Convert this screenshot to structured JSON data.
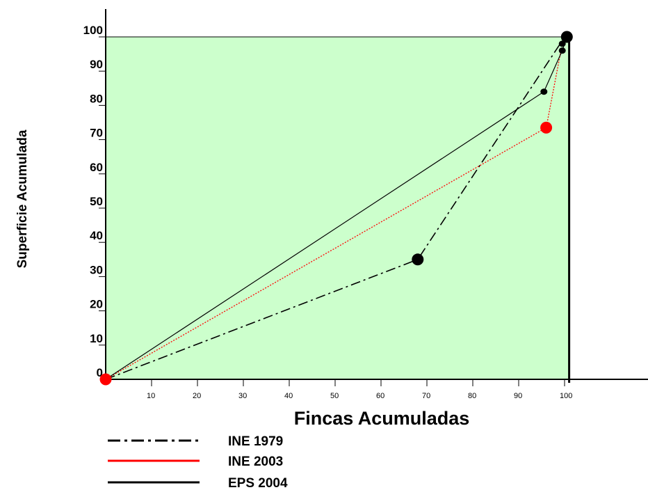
{
  "chart_data": {
    "type": "line",
    "xlabel": "Fincas Acumuladas",
    "ylabel": "Superficie Acumulada",
    "xlim": [
      0,
      102
    ],
    "ylim": [
      0,
      100
    ],
    "x_ticks": [
      "10",
      "20",
      "30",
      "40",
      "50",
      "60",
      "70",
      "80",
      "90",
      "100"
    ],
    "y_ticks": [
      "0",
      "10",
      "20",
      "30",
      "40",
      "50",
      "60",
      "70",
      "80",
      "90",
      "100"
    ],
    "grid": false,
    "plot_area_color": "#ccffcc",
    "legend_position": "bottom-left",
    "series": [
      {
        "name": "INE 1979",
        "color": "#000000",
        "dash": "dash-dot",
        "points": [
          [
            0,
            0
          ],
          [
            68,
            35
          ],
          [
            99.3,
            98.5
          ],
          [
            100.5,
            100
          ]
        ],
        "markers": [
          [
            68,
            35
          ],
          [
            100.5,
            100
          ]
        ]
      },
      {
        "name": "INE 2003",
        "color": "#ff0000",
        "dash": "dotted",
        "points": [
          [
            0,
            0
          ],
          [
            96,
            73.5
          ],
          [
            99.5,
            98
          ],
          [
            100.5,
            100
          ]
        ],
        "markers": [
          [
            0,
            0
          ],
          [
            96,
            73.5
          ]
        ]
      },
      {
        "name": "EPS 2004",
        "color": "#000000",
        "dash": "solid",
        "points": [
          [
            0,
            0
          ],
          [
            95.5,
            84
          ],
          [
            99.5,
            96
          ],
          [
            100.5,
            100
          ]
        ],
        "markers": [
          [
            95.5,
            84
          ],
          [
            99.5,
            96
          ],
          [
            99.5,
            98
          ]
        ]
      }
    ]
  }
}
